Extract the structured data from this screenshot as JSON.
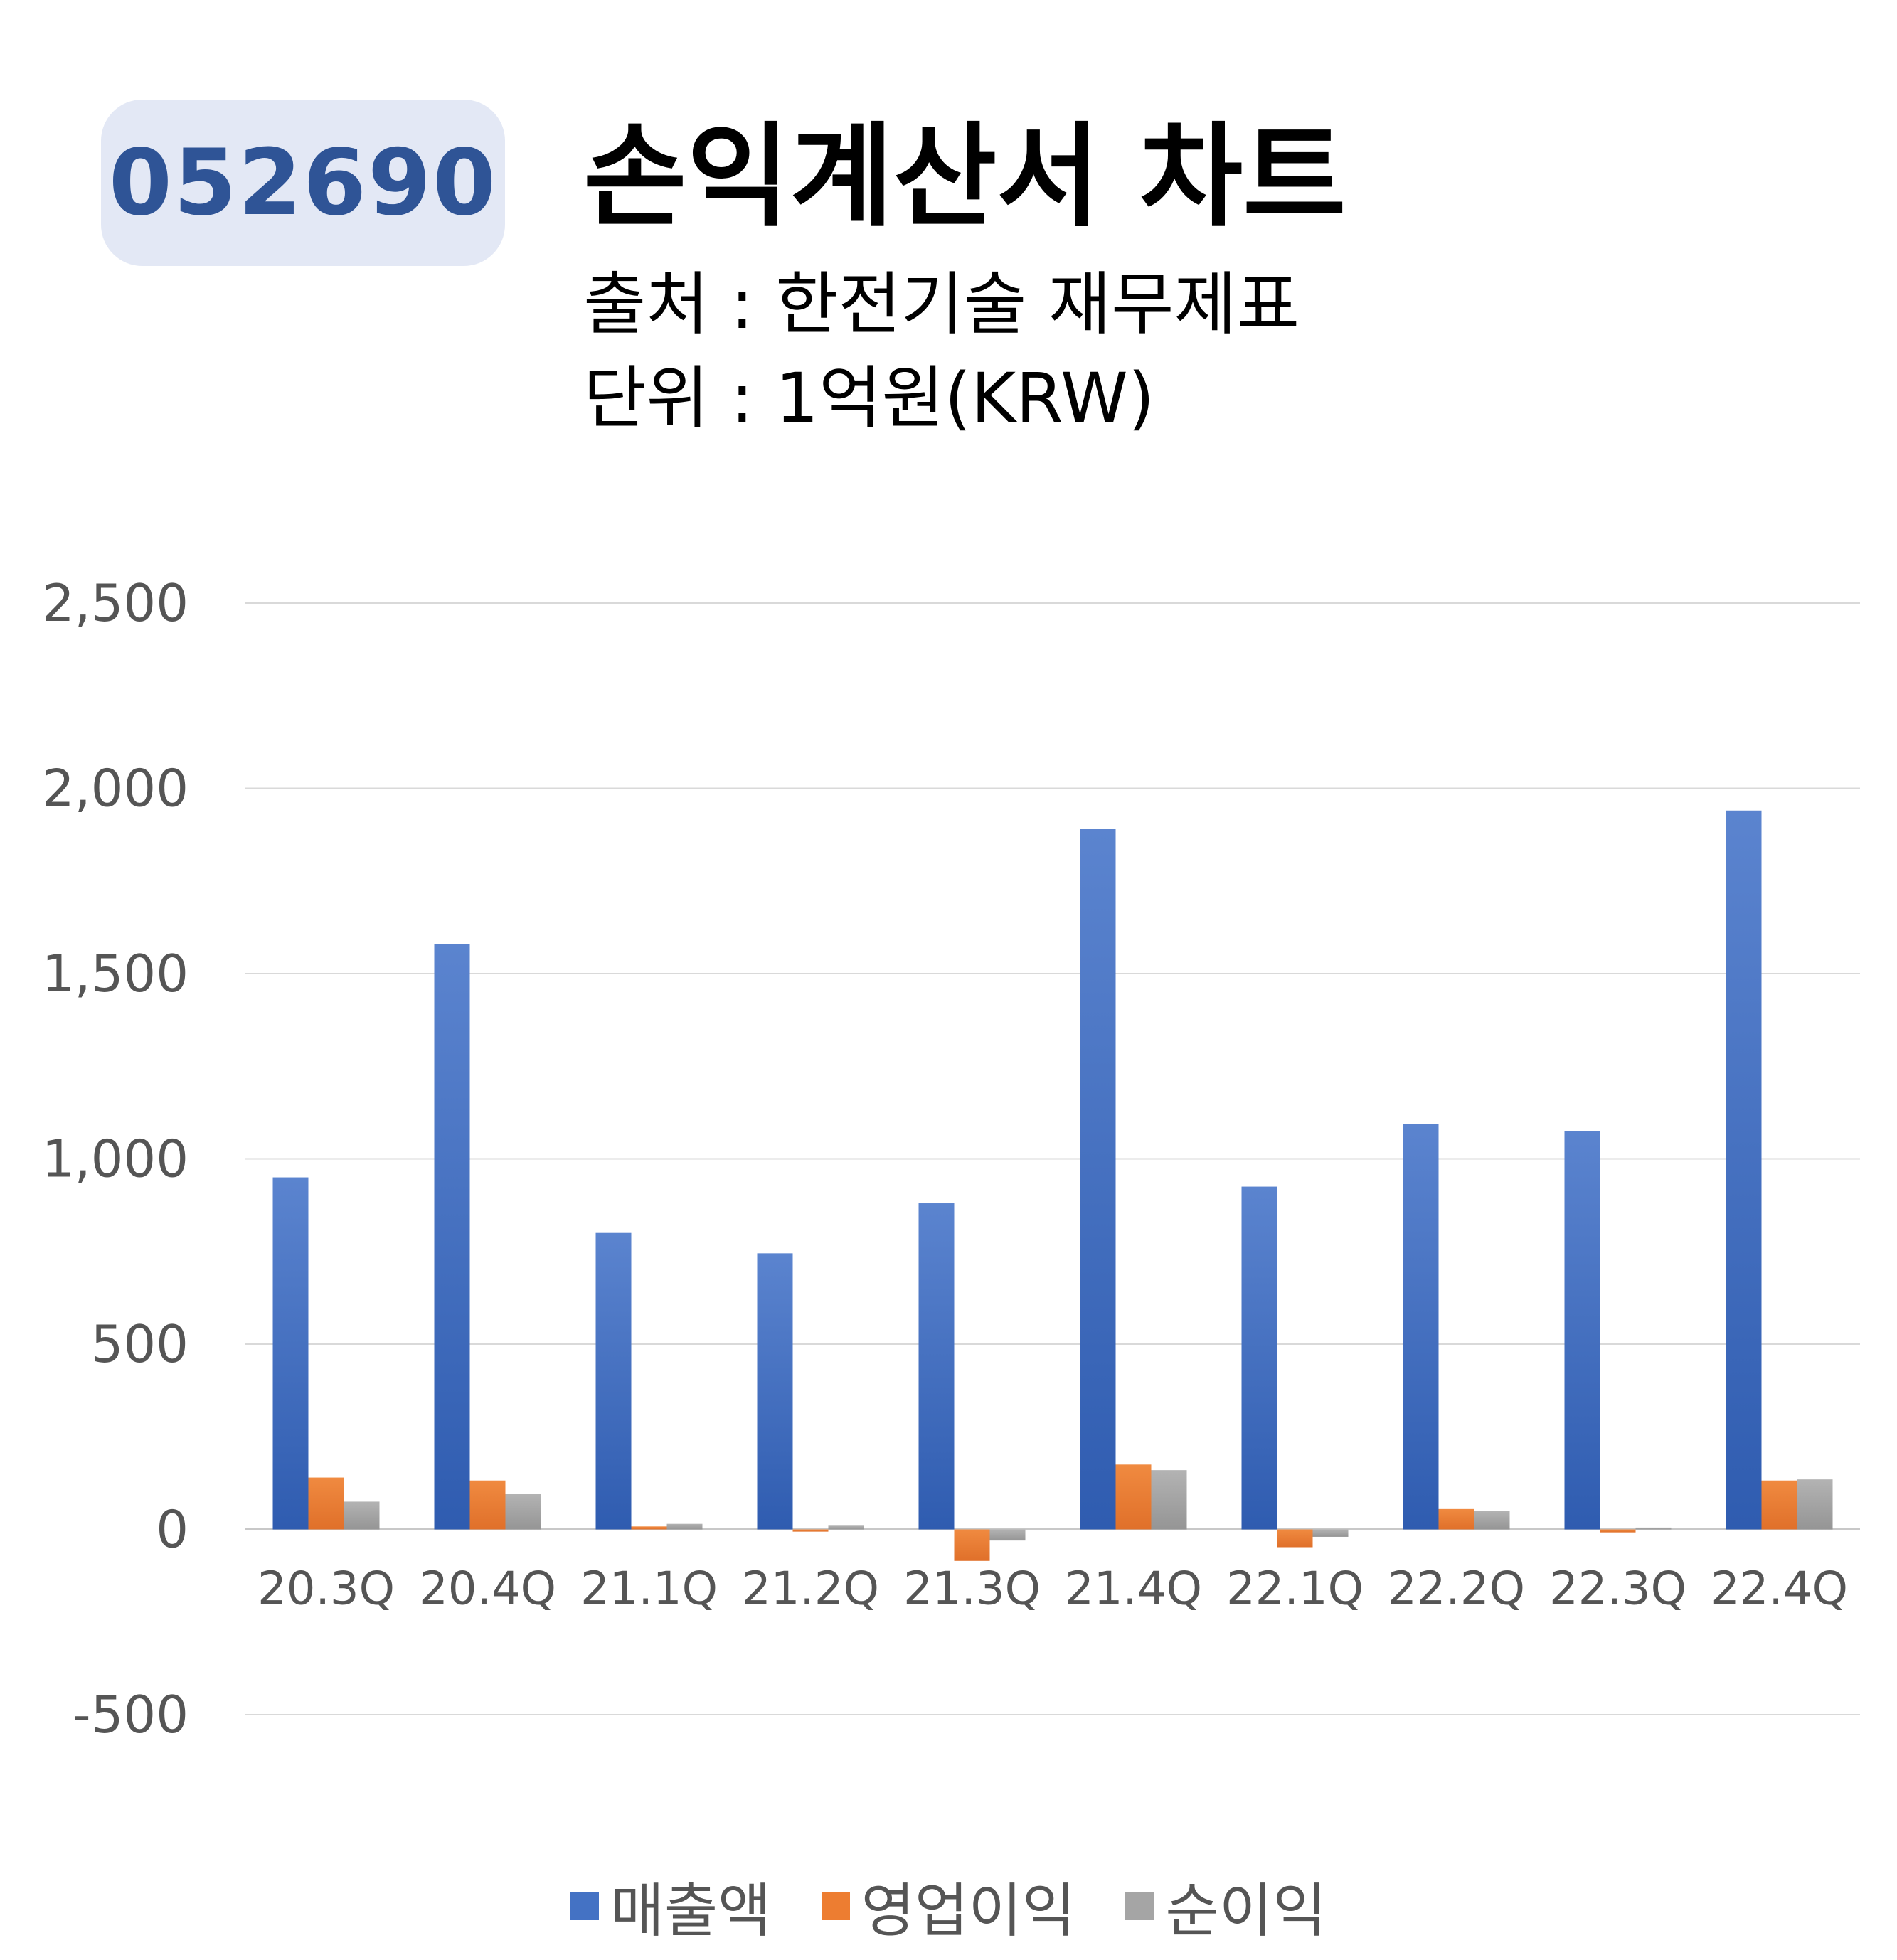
{
  "header": {
    "ticker": "052690",
    "title": "손익계산서 차트",
    "source": "출처 : 한전기술 재무제표",
    "unit": "단위 : 1억원(KRW)"
  },
  "colors": {
    "revenue": "#4472c4",
    "operating_profit": "#ed7d31",
    "net_income": "#a5a5a5",
    "grid": "#d9d9d9",
    "badge_bg": "#e3e8f5",
    "badge_text": "#2f5496"
  },
  "chart_data": {
    "type": "bar",
    "categories": [
      "20.3Q",
      "20.4Q",
      "21.1Q",
      "21.2Q",
      "21.3Q",
      "21.4Q",
      "22.1Q",
      "22.2Q",
      "22.3Q",
      "22.4Q"
    ],
    "series": [
      {
        "name": "매출액",
        "values": [
          950,
          1580,
          800,
          745,
          880,
          1890,
          925,
          1095,
          1075,
          1940
        ]
      },
      {
        "name": "영업이익",
        "values": [
          140,
          132,
          8,
          -6,
          -85,
          175,
          -48,
          55,
          -8,
          132
        ]
      },
      {
        "name": "순이익",
        "values": [
          75,
          95,
          15,
          10,
          -30,
          160,
          -20,
          50,
          5,
          135
        ]
      }
    ],
    "ylim": [
      -500,
      2500
    ],
    "yticks": [
      "2,500",
      "2,000",
      "1,500",
      "1,000",
      "500",
      "0",
      "-500"
    ],
    "ytick_values": [
      2500,
      2000,
      1500,
      1000,
      500,
      0,
      -500
    ],
    "grid": true,
    "legend_position": "bottom"
  }
}
